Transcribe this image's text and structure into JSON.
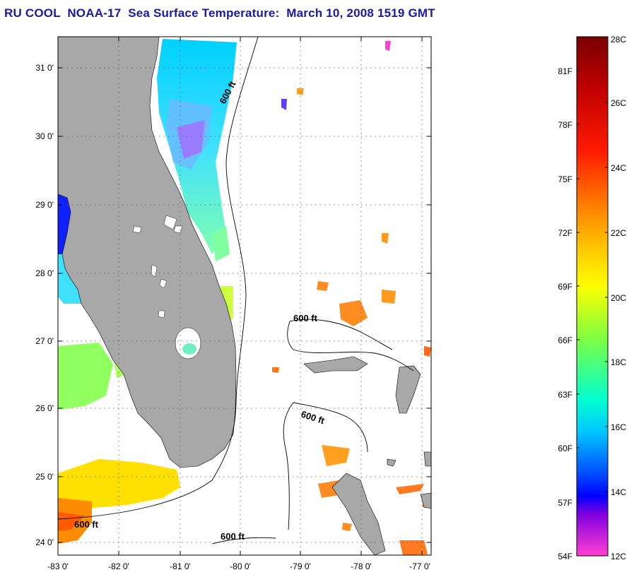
{
  "title": "RU COOL  NOAA-17  Sea Surface Temperature:  March 10, 2008 1519 GMT",
  "map": {
    "lat_labels": [
      "31 0'",
      "30 0'",
      "29 0'",
      "28 0'",
      "27 0'",
      "26 0'",
      "25 0'",
      "24 0'"
    ],
    "lon_labels": [
      "-83 0'",
      "-82 0'",
      "-81 0'",
      "-80 0'",
      "-79 0'",
      "-78 0'",
      "-77 0'"
    ],
    "isobath_labels": [
      "600 ft",
      "600 ft",
      "600 ft",
      "600 ft",
      "600 ft"
    ],
    "colors": {
      "land": "#a8a8a8",
      "ocean_no_data": "#ffffff",
      "grid": "#888888"
    }
  },
  "colorbar": {
    "celsius": [
      "28C",
      "26C",
      "24C",
      "22C",
      "20C",
      "18C",
      "16C",
      "14C",
      "12C"
    ],
    "fahrenheit": [
      "81F",
      "78F",
      "75F",
      "72F",
      "69F",
      "66F",
      "63F",
      "60F",
      "57F",
      "54F"
    ],
    "gradient": [
      "#7a0000",
      "#ff0000",
      "#ff7a00",
      "#ffff00",
      "#7aff3a",
      "#00ffff",
      "#0060ff",
      "#0000ff",
      "#8000ff",
      "#ff40d0"
    ]
  }
}
